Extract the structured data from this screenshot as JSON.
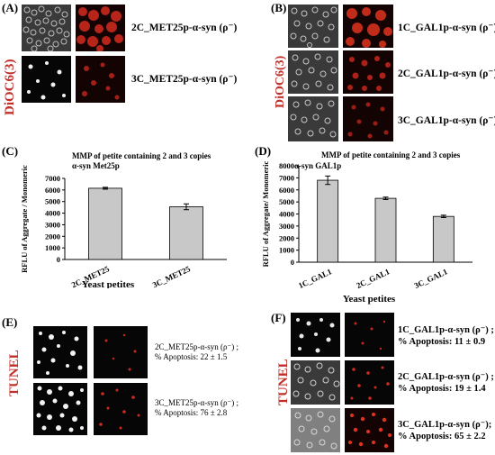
{
  "panels": {
    "A": {
      "label": "(A)",
      "stain": "DiOC6(3)",
      "rows": [
        {
          "label": "2C_MET25p-α-syn (ρ⁻)"
        },
        {
          "label": "3C_MET25p-α-syn (ρ⁻)"
        }
      ]
    },
    "B": {
      "label": "(B)",
      "stain": "DiOC6(3)",
      "rows": [
        {
          "label": "1C_GAL1p-α-syn (ρ⁻)"
        },
        {
          "label": "2C_GAL1p-α-syn (ρ⁻)"
        },
        {
          "label": "3C_GAL1p-α-syn (ρ⁻)"
        }
      ]
    },
    "C": {
      "label": "(C)"
    },
    "D": {
      "label": "(D)"
    },
    "E": {
      "label": "(E)",
      "stain": "TUNEL",
      "rows": [
        {
          "line1": "2C_MET25p-α-syn (ρ⁻) ;",
          "line2": "% Apoptosis: 22 ± 1.5"
        },
        {
          "line1": "3C_MET25p-α-syn (ρ⁻) ;",
          "line2": "% Apoptosis: 76 ± 2.8"
        }
      ]
    },
    "F": {
      "label": "(F)",
      "stain": "TUNEL",
      "rows": [
        {
          "line1": "1C_GAL1p-α-syn (ρ⁻) ;",
          "line2": "% Apoptosis: 11 ± 0.9"
        },
        {
          "line1": "2C_GAL1p-α-syn (ρ⁻) ;",
          "line2": "% Apoptosis: 19 ± 1.4"
        },
        {
          "line1": "3C_GAL1p-α-syn (ρ⁻);",
          "line2": "% Apoptosis: 65 ± 2.2"
        }
      ]
    }
  },
  "colors": {
    "bar_fill": "#c8c8c8",
    "stain_label": "#c0302a"
  },
  "chart_data": [
    {
      "type": "bar",
      "panel": "C",
      "title_line1": "MMP of petite containing 2 and 3 copies",
      "title_line2": "α-syn Met25p",
      "categories": [
        "2C_MET25",
        "3C_MET25"
      ],
      "values": [
        6150,
        4550
      ],
      "errors": [
        80,
        250
      ],
      "xlabel": "Yeast petites",
      "ylabel": "RFLU of Aggregate / Monomeric",
      "ylim": [
        0,
        7000
      ],
      "yticks": [
        0,
        1000,
        2000,
        3000,
        4000,
        5000,
        6000,
        7000
      ],
      "grid": false
    },
    {
      "type": "bar",
      "panel": "D",
      "title_line1": "MMP of petite containing 2 and 3 copies",
      "title_line2": "α-syn GAL1p",
      "categories": [
        "1C_GAL1",
        "2C_GAL1",
        "3C_GAL1"
      ],
      "values": [
        6800,
        5300,
        3800
      ],
      "errors": [
        350,
        100,
        100
      ],
      "xlabel": "Yeast petites",
      "ylabel": "RFLU of Aggregate/ Monomeric",
      "ylim": [
        0,
        8000
      ],
      "yticks": [
        0,
        1000,
        2000,
        3000,
        4000,
        5000,
        6000,
        7000,
        8000
      ],
      "grid": false
    }
  ]
}
